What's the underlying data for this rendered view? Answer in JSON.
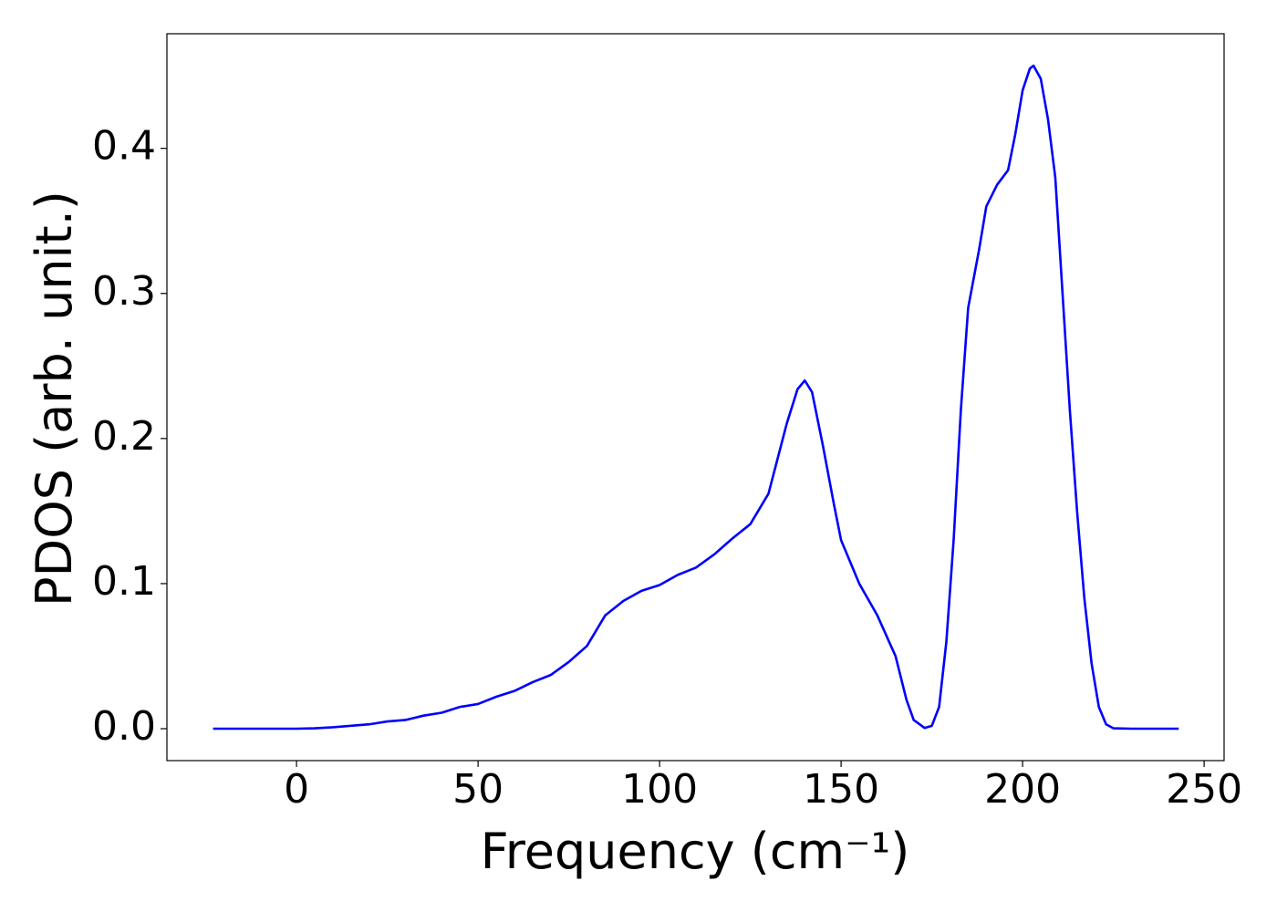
{
  "chart_data": {
    "type": "line",
    "xlabel": "Frequency (cm⁻¹)",
    "ylabel": "PDOS (arb. unit.)",
    "x": [
      -23,
      -10,
      0,
      5,
      10,
      15,
      20,
      25,
      30,
      35,
      40,
      45,
      50,
      55,
      60,
      65,
      70,
      75,
      80,
      85,
      90,
      95,
      100,
      105,
      110,
      115,
      120,
      125,
      130,
      135,
      138,
      140,
      142,
      145,
      148,
      150,
      155,
      160,
      165,
      168,
      170,
      173,
      175,
      177,
      179,
      181,
      183,
      185,
      188,
      190,
      193,
      196,
      198,
      200,
      202,
      203,
      205,
      207,
      209,
      211,
      213,
      215,
      217,
      219,
      221,
      223,
      225,
      230,
      243
    ],
    "series": [
      {
        "name": "PDOS",
        "color": "#0000ff",
        "values": [
          0,
          0,
          0,
          0.0003,
          0.001,
          0.002,
          0.003,
          0.005,
          0.006,
          0.009,
          0.011,
          0.015,
          0.017,
          0.022,
          0.026,
          0.032,
          0.037,
          0.046,
          0.057,
          0.078,
          0.088,
          0.095,
          0.099,
          0.106,
          0.111,
          0.12,
          0.131,
          0.141,
          0.162,
          0.21,
          0.234,
          0.24,
          0.232,
          0.195,
          0.155,
          0.13,
          0.1,
          0.078,
          0.05,
          0.02,
          0.006,
          0.0005,
          0.002,
          0.015,
          0.06,
          0.13,
          0.22,
          0.29,
          0.33,
          0.36,
          0.375,
          0.385,
          0.41,
          0.44,
          0.455,
          0.457,
          0.448,
          0.42,
          0.38,
          0.3,
          0.22,
          0.15,
          0.09,
          0.045,
          0.015,
          0.003,
          0.0003,
          0,
          0
        ]
      }
    ],
    "xlim": [
      -35.7,
      255.5
    ],
    "ylim": [
      -0.022,
      0.479
    ],
    "xticks": [
      0,
      50,
      100,
      150,
      200,
      250
    ],
    "yticks": [
      {
        "value": 0,
        "label": "0.0"
      },
      0.1,
      0.2,
      0.3,
      0.4
    ],
    "grid": false
  }
}
